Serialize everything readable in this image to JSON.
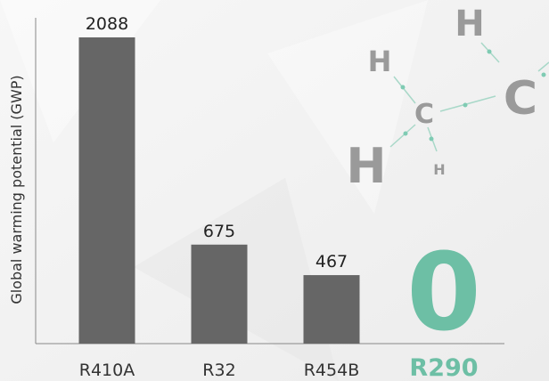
{
  "chart_data": {
    "type": "bar",
    "y_label": "Global warming potential (GWP)",
    "categories": [
      "R410A",
      "R32",
      "R454B",
      "R290"
    ],
    "values": [
      2088,
      675,
      467,
      0
    ],
    "color": "#666666",
    "colors": [
      "#666666",
      "#666666",
      "#666666",
      "#6dbfa5"
    ],
    "ylim": [
      0,
      2100
    ]
  },
  "molecule": {
    "atoms": [
      "H",
      "H",
      "C",
      "H",
      "H",
      "C"
    ]
  }
}
